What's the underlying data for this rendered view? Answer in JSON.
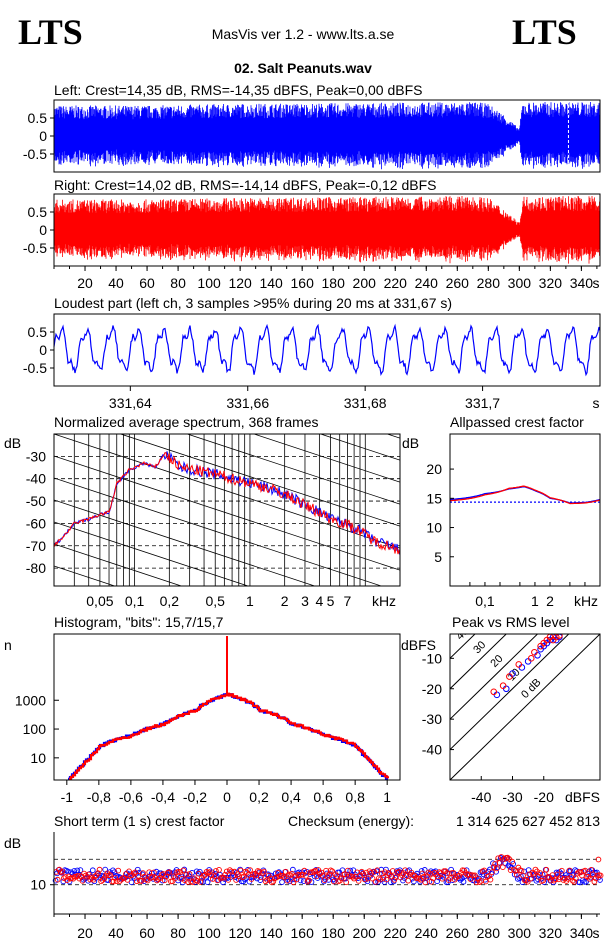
{
  "header": {
    "logo_left": "LTS",
    "logo_right": "LTS",
    "app_title": "MasVis ver 1.2 - www.lts.a.se",
    "track_title": "02. Salt Peanuts.wav"
  },
  "colors": {
    "left": "#0000ff",
    "right": "#ff0000",
    "background": "#ffffff",
    "axis": "#000000"
  },
  "chart_data": [
    {
      "id": "left_waveform",
      "type": "area",
      "title": "Left: Crest=14,35 dB, RMS=-14,35 dBFS, Peak=0,00 dBFS",
      "yticks": [
        "0.5",
        "0",
        "-0.5"
      ],
      "ytick_values": [
        0.5,
        0,
        -0.5
      ],
      "ylim": [
        -1,
        1
      ],
      "xlim": [
        0,
        352
      ],
      "color": "#0000ff",
      "envelope": [
        {
          "t": 0,
          "a": 0.85
        },
        {
          "t": 60,
          "a": 0.85
        },
        {
          "t": 120,
          "a": 0.9
        },
        {
          "t": 200,
          "a": 0.92
        },
        {
          "t": 270,
          "a": 0.95
        },
        {
          "t": 280,
          "a": 0.9
        },
        {
          "t": 290,
          "a": 0.6
        },
        {
          "t": 300,
          "a": 0.2
        },
        {
          "t": 302,
          "a": 0.95
        },
        {
          "t": 352,
          "a": 0.95
        }
      ],
      "marker_s": 331.67
    },
    {
      "id": "right_waveform",
      "type": "area",
      "title": "Right: Crest=14,02 dB, RMS=-14,14 dBFS, Peak=-0,12 dBFS",
      "yticks": [
        "0.5",
        "0",
        "-0.5"
      ],
      "ytick_values": [
        0.5,
        0,
        -0.5
      ],
      "ylim": [
        -1,
        1
      ],
      "xlim": [
        0,
        352
      ],
      "xticks": [
        20,
        40,
        60,
        80,
        100,
        120,
        140,
        160,
        180,
        200,
        220,
        240,
        260,
        280,
        300,
        320,
        340
      ],
      "xunit": "s",
      "color": "#ff0000",
      "envelope": [
        {
          "t": 0,
          "a": 0.85
        },
        {
          "t": 60,
          "a": 0.85
        },
        {
          "t": 120,
          "a": 0.9
        },
        {
          "t": 200,
          "a": 0.92
        },
        {
          "t": 270,
          "a": 0.95
        },
        {
          "t": 280,
          "a": 0.9
        },
        {
          "t": 290,
          "a": 0.6
        },
        {
          "t": 300,
          "a": 0.2
        },
        {
          "t": 302,
          "a": 0.95
        },
        {
          "t": 352,
          "a": 0.95
        }
      ]
    },
    {
      "id": "loudest_part",
      "type": "line",
      "title": "Loudest part (left  ch, 3 samples >95% during 20 ms at 331,67 s)",
      "yticks": [
        "0.5",
        "0",
        "-0.5"
      ],
      "ytick_values": [
        0.5,
        0,
        -0.5
      ],
      "ylim": [
        -1,
        1
      ],
      "xlim": [
        331.627,
        331.72
      ],
      "xticks": [
        "331,64",
        "331,66",
        "331,68",
        "331,7"
      ],
      "xtick_values": [
        331.64,
        331.66,
        331.68,
        331.7
      ],
      "xunit": "s",
      "color": "#0000ff",
      "cycle_s": 0.00435
    },
    {
      "id": "spectrum",
      "type": "line",
      "title": "Normalized average spectrum, 368 frames",
      "ylabel": "dB",
      "yticks": [
        "-30",
        "-40",
        "-50",
        "-60",
        "-70",
        "-80"
      ],
      "ytick_values": [
        -30,
        -40,
        -50,
        -60,
        -70,
        -80
      ],
      "ylim": [
        -88,
        -20
      ],
      "xscale": "log",
      "xlim": [
        0.02,
        20
      ],
      "xticks": [
        "0,05",
        "0,1",
        "0,2",
        "0,5",
        "1",
        "2",
        "3",
        "4",
        "5",
        "7"
      ],
      "xtick_values": [
        0.05,
        0.1,
        0.2,
        0.5,
        1,
        2,
        3,
        4,
        5,
        7
      ],
      "xunit": "kHz",
      "grid": true,
      "series": [
        {
          "name": "left",
          "color": "#0000ff",
          "points": [
            [
              0.02,
              -70
            ],
            [
              0.03,
              -60
            ],
            [
              0.05,
              -56
            ],
            [
              0.06,
              -55
            ],
            [
              0.07,
              -42
            ],
            [
              0.09,
              -36
            ],
            [
              0.12,
              -33
            ],
            [
              0.15,
              -35
            ],
            [
              0.18,
              -29
            ],
            [
              0.25,
              -35
            ],
            [
              0.4,
              -37
            ],
            [
              0.7,
              -40
            ],
            [
              1,
              -42
            ],
            [
              2,
              -47
            ],
            [
              3,
              -52
            ],
            [
              5,
              -58
            ],
            [
              8,
              -62
            ],
            [
              12,
              -68
            ],
            [
              20,
              -72
            ]
          ]
        },
        {
          "name": "right",
          "color": "#ff0000",
          "points": [
            [
              0.02,
              -70
            ],
            [
              0.03,
              -60
            ],
            [
              0.05,
              -56
            ],
            [
              0.06,
              -55
            ],
            [
              0.07,
              -42
            ],
            [
              0.09,
              -36
            ],
            [
              0.12,
              -33
            ],
            [
              0.15,
              -35
            ],
            [
              0.18,
              -29
            ],
            [
              0.25,
              -35
            ],
            [
              0.4,
              -37
            ],
            [
              0.7,
              -40
            ],
            [
              1,
              -42
            ],
            [
              2,
              -47
            ],
            [
              3,
              -52
            ],
            [
              5,
              -58
            ],
            [
              8,
              -62
            ],
            [
              12,
              -68
            ],
            [
              20,
              -72
            ]
          ]
        }
      ]
    },
    {
      "id": "allpassed_crest",
      "type": "line",
      "title": "Allpassed crest factor",
      "ylabel": "dB",
      "yticks": [
        "20",
        "15",
        "10",
        "5"
      ],
      "ytick_values": [
        20,
        15,
        10,
        5
      ],
      "ylim": [
        0,
        26
      ],
      "xscale": "log",
      "xlim": [
        0.02,
        20
      ],
      "xticks": [
        "0,1",
        "1",
        "2"
      ],
      "xtick_values": [
        0.1,
        1,
        2
      ],
      "xunit": "kHz",
      "reference_db": 14.35,
      "series": [
        {
          "name": "left",
          "color": "#0000ff",
          "points": [
            [
              0.02,
              14.8
            ],
            [
              0.1,
              15.8
            ],
            [
              0.3,
              16.6
            ],
            [
              0.6,
              17
            ],
            [
              1,
              16.3
            ],
            [
              2,
              15
            ],
            [
              5,
              14.2
            ],
            [
              10,
              14.3
            ],
            [
              20,
              14.8
            ]
          ]
        },
        {
          "name": "right",
          "color": "#ff0000",
          "points": [
            [
              0.02,
              14.6
            ],
            [
              0.1,
              15.6
            ],
            [
              0.3,
              16.7
            ],
            [
              0.6,
              17.1
            ],
            [
              1,
              16.4
            ],
            [
              2,
              15.1
            ],
            [
              5,
              14.1
            ],
            [
              10,
              14.2
            ],
            [
              20,
              14.7
            ]
          ]
        }
      ]
    },
    {
      "id": "histogram",
      "type": "line",
      "title": "Histogram, \"bits\": 15,7/15,7",
      "ylabel": "n",
      "yscale": "log",
      "yticks": [
        "1000",
        "100",
        "10"
      ],
      "ytick_values": [
        1000,
        100,
        10
      ],
      "ylim": [
        1.7,
        200000
      ],
      "xlim": [
        -1.08,
        1.08
      ],
      "xticks": [
        "-1",
        "-0,8",
        "-0,6",
        "-0,4",
        "-0,2",
        "0",
        "0,2",
        "0,4",
        "0,6",
        "0,8",
        "1"
      ],
      "xtick_values": [
        -1,
        -0.8,
        -0.6,
        -0.4,
        -0.2,
        0,
        0.2,
        0.4,
        0.6,
        0.8,
        1
      ],
      "series": [
        {
          "name": "left",
          "color": "#0000ff",
          "points": [
            [
              -0.99,
              2
            ],
            [
              -0.95,
              3
            ],
            [
              -0.9,
              6
            ],
            [
              -0.85,
              12
            ],
            [
              -0.8,
              25
            ],
            [
              -0.6,
              60
            ],
            [
              -0.4,
              150
            ],
            [
              -0.2,
              450
            ],
            [
              0,
              1600
            ],
            [
              0.2,
              450
            ],
            [
              0.4,
              150
            ],
            [
              0.6,
              60
            ],
            [
              0.8,
              25
            ],
            [
              0.85,
              12
            ],
            [
              0.9,
              6
            ],
            [
              0.95,
              3
            ],
            [
              0.99,
              2
            ]
          ]
        },
        {
          "name": "right",
          "color": "#ff0000",
          "points": [
            [
              -0.99,
              2
            ],
            [
              -0.95,
              3
            ],
            [
              -0.9,
              6
            ],
            [
              -0.85,
              12
            ],
            [
              -0.8,
              25
            ],
            [
              -0.6,
              60
            ],
            [
              -0.4,
              150
            ],
            [
              -0.2,
              450
            ],
            [
              0,
              1600
            ],
            [
              0.2,
              450
            ],
            [
              0.4,
              150
            ],
            [
              0.6,
              60
            ],
            [
              0.8,
              25
            ],
            [
              0.85,
              12
            ],
            [
              0.9,
              6
            ],
            [
              0.95,
              3
            ],
            [
              0.99,
              2
            ]
          ]
        }
      ]
    },
    {
      "id": "peak_vs_rms",
      "type": "scatter",
      "title": "Peak vs RMS level",
      "ylabel": "dBFS",
      "xlabel": "dBFS",
      "yticks": [
        "-10",
        "-20",
        "-30",
        "-40"
      ],
      "ytick_values": [
        -10,
        -20,
        -30,
        -40
      ],
      "ylim": [
        -50,
        -2
      ],
      "xticks": [
        "-40",
        "-30",
        "-20"
      ],
      "xtick_values": [
        -40,
        -30,
        -20
      ],
      "xlim": [
        -50,
        -2
      ],
      "crest_lines": [
        "40",
        "30",
        "20",
        "10",
        "0 dB"
      ],
      "crest_line_values": [
        40,
        30,
        20,
        10,
        0
      ],
      "series": [
        {
          "name": "left",
          "color": "#0000ff",
          "points": [
            [
              -35,
              -22
            ],
            [
              -32,
              -20
            ],
            [
              -30,
              -15
            ],
            [
              -27,
              -13
            ],
            [
              -25,
              -11
            ],
            [
              -22,
              -9
            ],
            [
              -21,
              -7
            ],
            [
              -20,
              -6
            ],
            [
              -19,
              -5
            ],
            [
              -18,
              -4
            ],
            [
              -17,
              -3
            ],
            [
              -16,
              -4
            ],
            [
              -15,
              -3
            ]
          ]
        },
        {
          "name": "right",
          "color": "#ff0000",
          "points": [
            [
              -36,
              -21
            ],
            [
              -33,
              -19
            ],
            [
              -31,
              -16
            ],
            [
              -28,
              -12
            ],
            [
              -24,
              -10
            ],
            [
              -23,
              -8
            ],
            [
              -21,
              -6
            ],
            [
              -20,
              -5
            ],
            [
              -19,
              -4
            ],
            [
              -18,
              -3
            ],
            [
              -17,
              -4
            ],
            [
              -16,
              -3
            ],
            [
              -15,
              -2.5
            ]
          ]
        }
      ]
    },
    {
      "id": "short_term_crest",
      "type": "scatter",
      "title": "Short term (1 s) crest factor",
      "checksum_label": "Checksum (energy):",
      "checksum_value": "1 314 625 627 452 813",
      "ylabel": "dB",
      "yticks": [
        "10"
      ],
      "ytick_values": [
        10
      ],
      "ylim": [
        5,
        19
      ],
      "reference_lines": [
        10,
        14.35
      ],
      "xlim": [
        0,
        352
      ],
      "xticks": [
        20,
        40,
        60,
        80,
        100,
        120,
        140,
        160,
        180,
        200,
        220,
        240,
        260,
        280,
        300,
        320,
        340
      ],
      "xunit": "s",
      "mean_db": 11.5,
      "series": [
        {
          "name": "left",
          "color": "#0000ff"
        },
        {
          "name": "right",
          "color": "#ff0000"
        }
      ]
    }
  ]
}
